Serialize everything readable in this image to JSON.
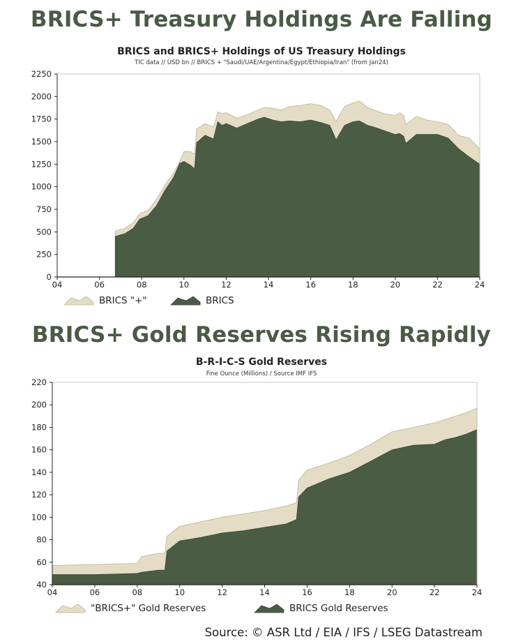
{
  "headline1": "BRICS+ Treasury Holdings Are Falling",
  "headline2": "BRICS+ Gold Reserves Rising Rapidly",
  "source": "Source: © ASR Ltd / EIA / IFS /  LSEG Datastream",
  "colors": {
    "brics": "#4b5c45",
    "brics_plus": "#e4dcc4",
    "headline": "#4a5a45"
  },
  "chart_data": [
    {
      "type": "area",
      "title": "BRICS and BRICS+ Holdings of US Treasury Holdings",
      "subtitle": "TIC data // USD bn // BRICS + \"Saudi/UAE/Argentina/Egypt/Ethiopia/Iran\" (from Jan24)",
      "xlabel": "",
      "ylabel": "",
      "xlim": [
        2004,
        2024
      ],
      "ylim": [
        0,
        2250
      ],
      "x_ticks": [
        "04",
        "06",
        "08",
        "10",
        "12",
        "14",
        "16",
        "18",
        "20",
        "22",
        "24"
      ],
      "y_ticks": [
        "0",
        "250",
        "500",
        "750",
        "1000",
        "1250",
        "1500",
        "1750",
        "2000",
        "2250"
      ],
      "legend": [
        "BRICS \"+\"",
        "BRICS"
      ],
      "legend_position": "bottom-left",
      "series": [
        {
          "name": "BRICS \"+\"",
          "x": [
            2006.75,
            2007.2,
            2007.6,
            2007.9,
            2008.3,
            2008.7,
            2009.1,
            2009.5,
            2009.8,
            2010.0,
            2010.3,
            2010.5,
            2010.6,
            2011.0,
            2011.4,
            2011.6,
            2011.8,
            2012.0,
            2012.5,
            2013.0,
            2013.5,
            2013.8,
            2014.2,
            2014.6,
            2015.0,
            2015.5,
            2016.0,
            2016.5,
            2016.9,
            2017.2,
            2017.6,
            2018.0,
            2018.3,
            2018.7,
            2019.0,
            2019.5,
            2020.0,
            2020.2,
            2020.4,
            2020.5,
            2021.0,
            2021.5,
            2022.0,
            2022.5,
            2023.0,
            2023.5,
            2024.0
          ],
          "values": [
            510,
            540,
            600,
            700,
            740,
            860,
            1020,
            1150,
            1280,
            1390,
            1390,
            1360,
            1640,
            1700,
            1660,
            1830,
            1810,
            1820,
            1760,
            1800,
            1850,
            1880,
            1870,
            1850,
            1890,
            1900,
            1920,
            1900,
            1850,
            1720,
            1890,
            1930,
            1950,
            1880,
            1850,
            1810,
            1790,
            1820,
            1790,
            1690,
            1780,
            1740,
            1720,
            1690,
            1570,
            1540,
            1420
          ]
        },
        {
          "name": "BRICS",
          "x": [
            2006.75,
            2007.2,
            2007.6,
            2007.9,
            2008.3,
            2008.7,
            2009.1,
            2009.5,
            2009.8,
            2010.0,
            2010.3,
            2010.5,
            2010.6,
            2011.0,
            2011.4,
            2011.6,
            2011.8,
            2012.0,
            2012.5,
            2013.0,
            2013.5,
            2013.8,
            2014.2,
            2014.6,
            2015.0,
            2015.5,
            2016.0,
            2016.5,
            2016.9,
            2017.2,
            2017.6,
            2018.0,
            2018.3,
            2018.7,
            2019.0,
            2019.5,
            2020.0,
            2020.2,
            2020.4,
            2020.5,
            2021.0,
            2021.5,
            2022.0,
            2022.5,
            2023.0,
            2023.5,
            2024.0
          ],
          "values": [
            450,
            480,
            540,
            640,
            680,
            790,
            960,
            1100,
            1260,
            1280,
            1240,
            1200,
            1490,
            1570,
            1530,
            1720,
            1680,
            1700,
            1650,
            1700,
            1750,
            1770,
            1740,
            1720,
            1730,
            1720,
            1740,
            1710,
            1680,
            1520,
            1680,
            1720,
            1730,
            1680,
            1660,
            1620,
            1580,
            1590,
            1560,
            1480,
            1580,
            1580,
            1580,
            1540,
            1420,
            1330,
            1250
          ]
        }
      ]
    },
    {
      "type": "area",
      "title": "B-R-I-C-S Gold Reserves",
      "subtitle": "Fine Ounce (Millions) / Source IMF IFS",
      "xlabel": "",
      "ylabel": "",
      "xlim": [
        2004,
        2024
      ],
      "ylim": [
        40,
        220
      ],
      "x_ticks": [
        "04",
        "06",
        "08",
        "10",
        "12",
        "14",
        "16",
        "18",
        "20",
        "22",
        "24"
      ],
      "y_ticks": [
        "40",
        "60",
        "80",
        "100",
        "120",
        "140",
        "160",
        "180",
        "200",
        "220"
      ],
      "legend": [
        "\"BRICS+\" Gold Reserves",
        "BRICS Gold Reserves"
      ],
      "legend_position": "bottom-left",
      "series": [
        {
          "name": "\"BRICS+\" Gold Reserves",
          "x": [
            2004,
            2006,
            2008,
            2008.2,
            2009,
            2009.3,
            2009.4,
            2010,
            2011,
            2012,
            2013,
            2014,
            2015,
            2015.5,
            2015.6,
            2016,
            2017,
            2018,
            2019,
            2020,
            2021,
            2022,
            2022.5,
            2023,
            2023.5,
            2024
          ],
          "values": [
            57,
            58,
            59,
            65,
            68,
            68,
            83,
            92,
            96,
            100,
            103,
            106,
            110,
            113,
            133,
            142,
            148,
            155,
            165,
            176,
            180,
            184,
            187,
            190,
            193,
            197
          ]
        },
        {
          "name": "BRICS Gold Reserves",
          "x": [
            2004,
            2006,
            2008,
            2008.2,
            2009,
            2009.3,
            2009.4,
            2010,
            2011,
            2012,
            2013,
            2014,
            2015,
            2015.5,
            2015.6,
            2016,
            2017,
            2018,
            2019,
            2020,
            2021,
            2022,
            2022.5,
            2023,
            2023.5,
            2024
          ],
          "values": [
            49,
            49,
            50,
            51,
            53,
            53,
            70,
            79,
            82,
            86,
            88,
            91,
            94,
            98,
            118,
            126,
            134,
            140,
            150,
            160,
            164,
            165,
            169,
            171,
            174,
            178
          ]
        }
      ]
    }
  ]
}
